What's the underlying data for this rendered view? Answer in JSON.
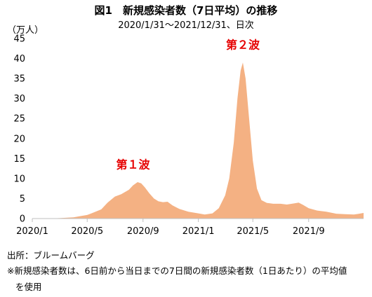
{
  "header": {
    "title": "図1　新規感染者数（7日平均）の推移",
    "subtitle": "2020/1/31〜2021/12/31、日次",
    "unit": "（万人）"
  },
  "notes": {
    "source": "出所：ブルームバーグ",
    "remark_1": "※新規感染者数は、6日前から当日までの7日間の新規感染者数（1日あたり）の平均値",
    "remark_2": "を使用"
  },
  "colors": {
    "area": "#F4B183",
    "wave_label": "#E60000",
    "axis": "#bfbfbf"
  },
  "chart_data": {
    "type": "area",
    "title": "図1　新規感染者数（7日平均）の推移",
    "ylabel": "（万人）",
    "ylim": [
      0,
      45
    ],
    "yticks": [
      "0",
      "5",
      "10",
      "15",
      "20",
      "25",
      "30",
      "35",
      "40",
      "45"
    ],
    "xlim": [
      "2020-01-31",
      "2021-12-31"
    ],
    "xticks": [
      {
        "date": "2020-01-01",
        "label": "2020/1"
      },
      {
        "date": "2020-05-01",
        "label": "2020/5"
      },
      {
        "date": "2020-09-01",
        "label": "2020/9"
      },
      {
        "date": "2021-01-01",
        "label": "2021/1"
      },
      {
        "date": "2021-05-01",
        "label": "2021/5"
      },
      {
        "date": "2021-09-01",
        "label": "2021/9"
      }
    ],
    "grid": false,
    "series": [
      {
        "points": [
          [
            "2020-01-31",
            0.0
          ],
          [
            "2020-03-01",
            0.1
          ],
          [
            "2020-04-01",
            0.3
          ],
          [
            "2020-04-15",
            0.6
          ],
          [
            "2020-05-01",
            0.9
          ],
          [
            "2020-05-15",
            1.5
          ],
          [
            "2020-06-01",
            2.3
          ],
          [
            "2020-06-15",
            4.0
          ],
          [
            "2020-07-01",
            5.5
          ],
          [
            "2020-07-15",
            6.1
          ],
          [
            "2020-08-01",
            7.2
          ],
          [
            "2020-08-10",
            8.3
          ],
          [
            "2020-08-20",
            9.1
          ],
          [
            "2020-08-28",
            8.8
          ],
          [
            "2020-09-05",
            7.8
          ],
          [
            "2020-09-15",
            6.3
          ],
          [
            "2020-09-25",
            5.0
          ],
          [
            "2020-10-05",
            4.3
          ],
          [
            "2020-10-15",
            4.1
          ],
          [
            "2020-10-25",
            4.2
          ],
          [
            "2020-11-05",
            3.3
          ],
          [
            "2020-11-20",
            2.4
          ],
          [
            "2020-12-10",
            1.7
          ],
          [
            "2021-01-01",
            1.3
          ],
          [
            "2021-01-15",
            1.0
          ],
          [
            "2021-02-01",
            1.3
          ],
          [
            "2021-02-15",
            2.6
          ],
          [
            "2021-03-01",
            5.8
          ],
          [
            "2021-03-10",
            10.0
          ],
          [
            "2021-03-20",
            19.0
          ],
          [
            "2021-03-28",
            30.0
          ],
          [
            "2021-04-04",
            37.0
          ],
          [
            "2021-04-09",
            39.0
          ],
          [
            "2021-04-15",
            35.0
          ],
          [
            "2021-04-22",
            26.0
          ],
          [
            "2021-05-01",
            14.5
          ],
          [
            "2021-05-10",
            7.5
          ],
          [
            "2021-05-20",
            4.6
          ],
          [
            "2021-06-01",
            3.9
          ],
          [
            "2021-06-15",
            3.7
          ],
          [
            "2021-07-01",
            3.7
          ],
          [
            "2021-07-15",
            3.5
          ],
          [
            "2021-08-01",
            3.8
          ],
          [
            "2021-08-10",
            4.0
          ],
          [
            "2021-08-20",
            3.4
          ],
          [
            "2021-09-01",
            2.6
          ],
          [
            "2021-09-20",
            2.0
          ],
          [
            "2021-10-10",
            1.7
          ],
          [
            "2021-11-01",
            1.2
          ],
          [
            "2021-11-20",
            1.1
          ],
          [
            "2021-12-10",
            1.0
          ],
          [
            "2021-12-31",
            1.4
          ]
        ]
      }
    ],
    "annotations": [
      {
        "text": "第１波",
        "date": "2020-08-10",
        "value": 12.5
      },
      {
        "text": "第２波",
        "date": "2021-04-09",
        "value": 42.5
      }
    ]
  }
}
